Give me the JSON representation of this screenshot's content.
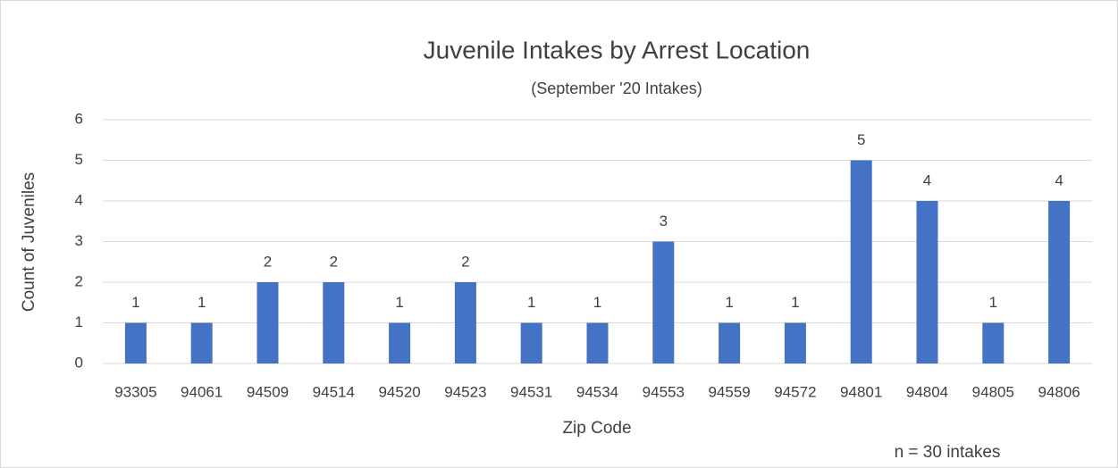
{
  "chart_data": {
    "type": "bar",
    "title": "Juvenile Intakes by Arrest Location",
    "subtitle": "(September '20 Intakes)",
    "x_label": "Zip Code",
    "y_label": "Count of Juveniles",
    "annotation": "n = 30 intakes",
    "categories": [
      "93305",
      "94061",
      "94509",
      "94514",
      "94520",
      "94523",
      "94531",
      "94534",
      "94553",
      "94559",
      "94572",
      "94801",
      "94804",
      "94805",
      "94806"
    ],
    "values": [
      1,
      1,
      2,
      2,
      1,
      2,
      1,
      1,
      3,
      1,
      1,
      5,
      4,
      1,
      4
    ],
    "color": "#4472c4",
    "ylim": [
      0,
      6
    ],
    "yticks": [
      0,
      1,
      2,
      3,
      4,
      5,
      6
    ],
    "grid": true
  }
}
